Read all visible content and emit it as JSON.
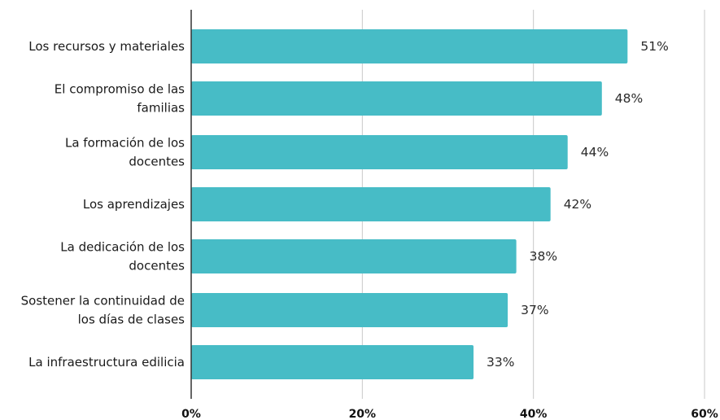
{
  "chart_data": {
    "type": "bar",
    "orientation": "horizontal",
    "title": "",
    "xlabel": "",
    "ylabel": "",
    "categories": [
      [
        "Los recursos y materiales"
      ],
      [
        "El compromiso de las",
        "familias"
      ],
      [
        "La formación de los",
        "docentes"
      ],
      [
        "Los aprendizajes"
      ],
      [
        "La dedicación de los",
        "docentes"
      ],
      [
        "Sostener la continuidad de",
        "los días de clases"
      ],
      [
        "La infraestructura edilicia"
      ]
    ],
    "values": [
      51,
      48,
      44,
      42,
      38,
      37,
      33
    ],
    "value_labels": [
      "51%",
      "48%",
      "44%",
      "42%",
      "38%",
      "37%",
      "33%"
    ],
    "xlim": [
      0,
      60
    ],
    "xticks": [
      0,
      20,
      40,
      60
    ],
    "xtick_labels": [
      "0%",
      "20%",
      "40%",
      "60%"
    ],
    "grid": "vertical",
    "legend": "none",
    "colors": {
      "bar": "#47bcc6",
      "grid": "#c8c8c8",
      "axis": "#333333"
    }
  }
}
